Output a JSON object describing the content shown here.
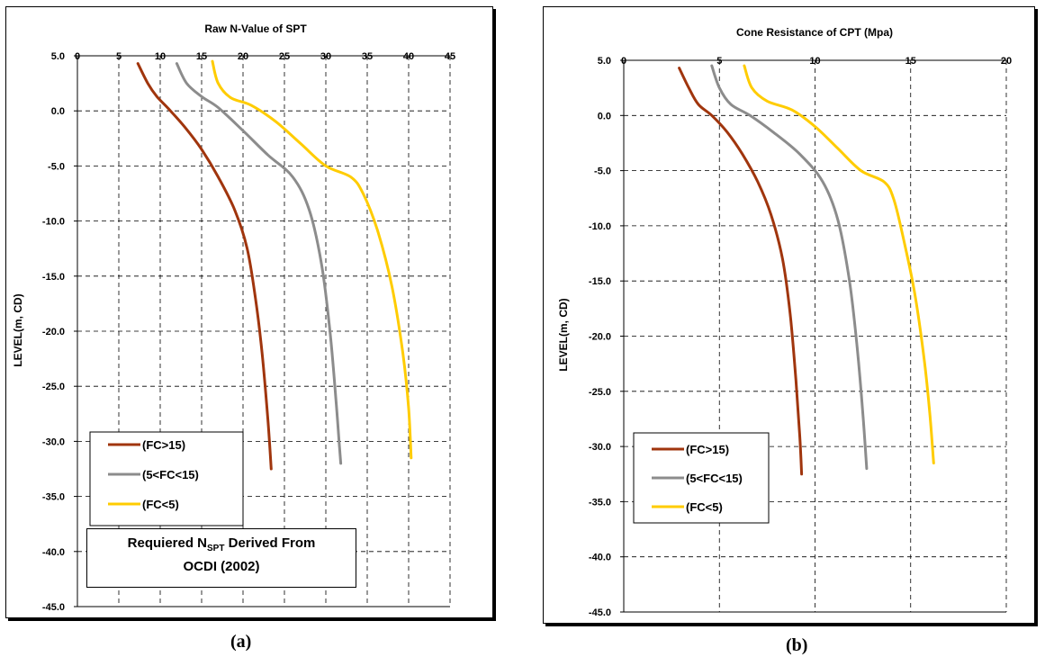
{
  "captions": {
    "a": "(a)",
    "b": "(b)"
  },
  "note": {
    "line1_prefix": "Requiered N",
    "line1_sub": "SPT",
    "line1_suffix": " Derived From",
    "line2": "OCDI (2002)"
  },
  "colors": {
    "fc_gt_15": "#a0350d",
    "fc_5_15": "#8c8c8c",
    "fc_lt_5": "#ffcc00"
  },
  "chart_data": [
    {
      "type": "line",
      "title": "Raw N-Value of SPT",
      "xlabel": "",
      "ylabel": "LEVEL(m, CD)",
      "xlim": [
        0,
        45
      ],
      "ylim": [
        -45,
        5
      ],
      "x_ticks": [
        "0",
        "5",
        "10",
        "15",
        "20",
        "25",
        "30",
        "35",
        "40",
        "45"
      ],
      "y_ticks": [
        "5.0",
        "0.0",
        "-5.0",
        "-10.0",
        "-15.0",
        "-20.0",
        "-25.0",
        "-30.0",
        "-35.0",
        "-40.0",
        "-45.0"
      ],
      "grid": true,
      "legend_position": "bottom-left",
      "series": [
        {
          "name": "(FC>15)",
          "color": "#a0350d",
          "points": [
            [
              7.3,
              4.3
            ],
            [
              8.5,
              2.5
            ],
            [
              9.6,
              1.3
            ],
            [
              11.0,
              0.2
            ],
            [
              13.0,
              -1.5
            ],
            [
              15.0,
              -3.5
            ],
            [
              17.0,
              -6.0
            ],
            [
              19.0,
              -9.0
            ],
            [
              20.5,
              -12.5
            ],
            [
              21.5,
              -17.0
            ],
            [
              22.3,
              -22.0
            ],
            [
              23.0,
              -28.0
            ],
            [
              23.4,
              -32.5
            ]
          ]
        },
        {
          "name": "(5<FC<15)",
          "color": "#8c8c8c",
          "points": [
            [
              12.0,
              4.3
            ],
            [
              13.2,
              2.5
            ],
            [
              15.0,
              1.3
            ],
            [
              17.0,
              0.3
            ],
            [
              20.0,
              -1.8
            ],
            [
              23.0,
              -4.0
            ],
            [
              26.0,
              -6.0
            ],
            [
              28.0,
              -9.0
            ],
            [
              29.5,
              -14.0
            ],
            [
              30.5,
              -20.0
            ],
            [
              31.2,
              -26.0
            ],
            [
              31.6,
              -30.0
            ],
            [
              31.8,
              -32.0
            ]
          ]
        },
        {
          "name": "(FC<5)",
          "color": "#ffcc00",
          "points": [
            [
              16.3,
              4.5
            ],
            [
              17.0,
              2.5
            ],
            [
              18.5,
              1.2
            ],
            [
              21.0,
              0.5
            ],
            [
              24.0,
              -1.0
            ],
            [
              27.0,
              -3.0
            ],
            [
              30.0,
              -5.0
            ],
            [
              33.0,
              -6.0
            ],
            [
              34.5,
              -7.5
            ],
            [
              36.3,
              -11.0
            ],
            [
              38.0,
              -16.0
            ],
            [
              39.3,
              -22.0
            ],
            [
              40.0,
              -27.0
            ],
            [
              40.3,
              -31.5
            ]
          ]
        }
      ]
    },
    {
      "type": "line",
      "title": "Cone Resistance of CPT (Mpa)",
      "xlabel": "",
      "ylabel": "LEVEL(m, CD)",
      "xlim": [
        0,
        20
      ],
      "ylim": [
        -45,
        5
      ],
      "x_ticks": [
        "0",
        "5",
        "10",
        "15",
        "20"
      ],
      "y_ticks": [
        "5.0",
        "0.0",
        "-5.0",
        "-10.0",
        "-15.0",
        "-20.0",
        "-25.0",
        "-30.0",
        "-35.0",
        "-40.0",
        "-45.0"
      ],
      "grid": true,
      "legend_position": "bottom-left",
      "series": [
        {
          "name": "(FC>15)",
          "color": "#a0350d",
          "points": [
            [
              2.9,
              4.3
            ],
            [
              3.4,
              2.5
            ],
            [
              3.9,
              1.0
            ],
            [
              4.6,
              0.0
            ],
            [
              5.4,
              -1.5
            ],
            [
              6.2,
              -3.5
            ],
            [
              7.0,
              -6.0
            ],
            [
              7.7,
              -9.0
            ],
            [
              8.3,
              -13.0
            ],
            [
              8.7,
              -18.0
            ],
            [
              9.0,
              -24.0
            ],
            [
              9.2,
              -29.0
            ],
            [
              9.3,
              -32.5
            ]
          ]
        },
        {
          "name": "(5<FC<15)",
          "color": "#8c8c8c",
          "points": [
            [
              4.6,
              4.5
            ],
            [
              5.0,
              2.5
            ],
            [
              5.6,
              1.0
            ],
            [
              6.6,
              0.0
            ],
            [
              7.8,
              -1.5
            ],
            [
              9.2,
              -3.5
            ],
            [
              10.4,
              -6.0
            ],
            [
              11.2,
              -9.5
            ],
            [
              11.8,
              -15.0
            ],
            [
              12.2,
              -21.0
            ],
            [
              12.5,
              -27.0
            ],
            [
              12.7,
              -32.0
            ]
          ]
        },
        {
          "name": "(FC<5)",
          "color": "#ffcc00",
          "points": [
            [
              6.3,
              4.5
            ],
            [
              6.7,
              2.5
            ],
            [
              7.5,
              1.3
            ],
            [
              8.8,
              0.5
            ],
            [
              10.0,
              -1.0
            ],
            [
              11.2,
              -3.0
            ],
            [
              12.4,
              -5.0
            ],
            [
              13.6,
              -6.0
            ],
            [
              14.1,
              -7.5
            ],
            [
              14.6,
              -11.0
            ],
            [
              15.2,
              -16.0
            ],
            [
              15.7,
              -22.0
            ],
            [
              16.0,
              -27.0
            ],
            [
              16.2,
              -31.5
            ]
          ]
        }
      ]
    }
  ]
}
